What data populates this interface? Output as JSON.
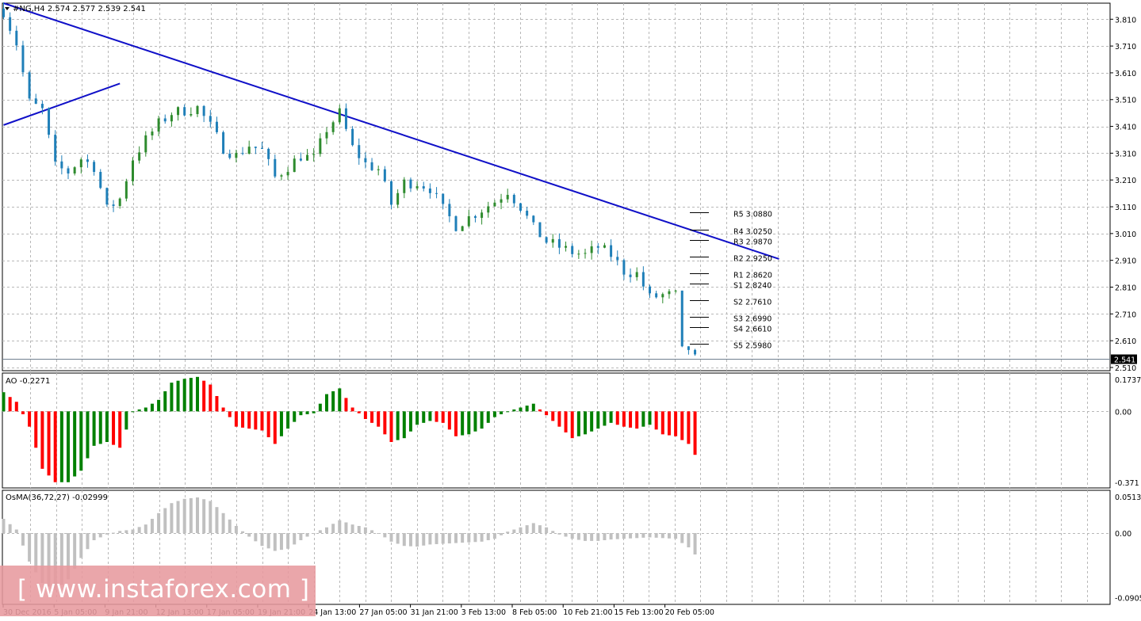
{
  "chart_data": [
    {
      "type": "candlestick",
      "symbol_header": "#NG,H4  2.574 2.577 2.539 2.541",
      "y_ticks": [
        "3.810",
        "3.710",
        "3.610",
        "3.510",
        "3.410",
        "3.310",
        "3.210",
        "3.110",
        "3.010",
        "2.910",
        "2.810",
        "2.710",
        "2.610",
        "2.510"
      ],
      "ylim": [
        2.498,
        3.87
      ],
      "current_price": "2.541",
      "x_tick_labels": [
        "30 Dec 2016",
        "5 Jan 05:00",
        "9 Jan 21:00",
        "12 Jan 13:00",
        "17 Jan 05:00",
        "19 Jan 21:00",
        "24 Jan 13:00",
        "27 Jan 05:00",
        "31 Jan 21:00",
        "3 Feb 13:00",
        "8 Feb 05:00",
        "10 Feb 21:00",
        "15 Feb 13:00",
        "20 Feb 05:00"
      ],
      "close_path": [
        [
          0,
          3.84
        ],
        [
          2,
          3.72
        ],
        [
          4,
          3.5
        ],
        [
          6,
          3.47
        ],
        [
          8,
          3.26
        ],
        [
          10,
          3.24
        ],
        [
          12,
          3.29
        ],
        [
          14,
          3.26
        ],
        [
          16,
          3.1
        ],
        [
          18,
          3.14
        ],
        [
          20,
          3.29
        ],
        [
          22,
          3.36
        ],
        [
          24,
          3.42
        ],
        [
          26,
          3.46
        ],
        [
          28,
          3.47
        ],
        [
          30,
          3.48
        ],
        [
          32,
          3.41
        ],
        [
          34,
          3.33
        ],
        [
          36,
          3.3
        ],
        [
          38,
          3.34
        ],
        [
          40,
          3.32
        ],
        [
          42,
          3.22
        ],
        [
          44,
          3.26
        ],
        [
          46,
          3.3
        ],
        [
          48,
          3.29
        ],
        [
          50,
          3.4
        ],
        [
          52,
          3.46
        ],
        [
          54,
          3.33
        ],
        [
          56,
          3.27
        ],
        [
          58,
          3.25
        ],
        [
          60,
          3.12
        ],
        [
          62,
          3.2
        ],
        [
          64,
          3.2
        ],
        [
          66,
          3.18
        ],
        [
          68,
          3.1
        ],
        [
          70,
          3.04
        ],
        [
          72,
          3.07
        ],
        [
          74,
          3.1
        ],
        [
          76,
          3.13
        ],
        [
          78,
          3.17
        ],
        [
          80,
          3.11
        ],
        [
          82,
          3.03
        ],
        [
          84,
          2.98
        ],
        [
          86,
          2.96
        ],
        [
          88,
          2.94
        ],
        [
          90,
          2.93
        ],
        [
          92,
          2.96
        ],
        [
          94,
          2.93
        ],
        [
          96,
          2.87
        ],
        [
          98,
          2.86
        ],
        [
          100,
          2.77
        ],
        [
          102,
          2.78
        ],
        [
          104,
          2.78
        ],
        [
          105,
          2.57
        ],
        [
          106,
          2.58
        ],
        [
          107,
          2.541
        ]
      ],
      "bull_color": "#2e8b2e",
      "bear_color": "#1f7fb8",
      "trendlines": [
        {
          "from": [
            0,
            3.415
          ],
          "to": [
            18,
            3.57
          ],
          "color": "#1010c8"
        },
        {
          "from": [
            0,
            3.87
          ],
          "to": [
            120,
            2.915
          ],
          "color": "#1010c8"
        }
      ],
      "pivot_levels": [
        {
          "label": "R5",
          "value": "3.0880",
          "level": 3.088
        },
        {
          "label": "R4",
          "value": "3.0250",
          "level": 3.025
        },
        {
          "label": "R3",
          "value": "2.9870",
          "level": 2.987
        },
        {
          "label": "R2",
          "value": "2.9250",
          "level": 2.925
        },
        {
          "label": "R1",
          "value": "2.8620",
          "level": 2.862
        },
        {
          "label": "S1",
          "value": "2.8240",
          "level": 2.824
        },
        {
          "label": "S2",
          "value": "2.7610",
          "level": 2.761
        },
        {
          "label": "S3",
          "value": "2.6990",
          "level": 2.699
        },
        {
          "label": "S4",
          "value": "2.6610",
          "level": 2.661
        },
        {
          "label": "S5",
          "value": "2.5980",
          "level": 2.598
        }
      ]
    },
    {
      "type": "bar",
      "name": "AO",
      "header": "AO -0.2271",
      "y_ticks": [
        "0.1737",
        "0.00",
        "-0.371"
      ],
      "ylim": [
        -0.4,
        0.2
      ],
      "rising_color": "#008000",
      "falling_color": "#ff0000",
      "curve": [
        [
          0,
          0.1
        ],
        [
          2,
          0.05
        ],
        [
          4,
          -0.08
        ],
        [
          6,
          -0.3
        ],
        [
          8,
          -0.37
        ],
        [
          10,
          -0.37
        ],
        [
          12,
          -0.31
        ],
        [
          14,
          -0.18
        ],
        [
          16,
          -0.16
        ],
        [
          18,
          -0.19
        ],
        [
          20,
          0.0
        ],
        [
          22,
          0.02
        ],
        [
          24,
          0.06
        ],
        [
          26,
          0.15
        ],
        [
          28,
          0.17
        ],
        [
          30,
          0.18
        ],
        [
          32,
          0.14
        ],
        [
          34,
          0.02
        ],
        [
          36,
          -0.08
        ],
        [
          38,
          -0.09
        ],
        [
          40,
          -0.1
        ],
        [
          42,
          -0.17
        ],
        [
          44,
          -0.09
        ],
        [
          46,
          -0.02
        ],
        [
          48,
          -0.01
        ],
        [
          50,
          0.09
        ],
        [
          52,
          0.12
        ],
        [
          54,
          0.02
        ],
        [
          56,
          -0.04
        ],
        [
          58,
          -0.08
        ],
        [
          60,
          -0.16
        ],
        [
          62,
          -0.14
        ],
        [
          64,
          -0.07
        ],
        [
          66,
          -0.05
        ],
        [
          68,
          -0.06
        ],
        [
          70,
          -0.13
        ],
        [
          72,
          -0.12
        ],
        [
          74,
          -0.09
        ],
        [
          76,
          -0.03
        ],
        [
          78,
          0.0
        ],
        [
          80,
          0.02
        ],
        [
          82,
          0.04
        ],
        [
          84,
          -0.02
        ],
        [
          86,
          -0.08
        ],
        [
          88,
          -0.14
        ],
        [
          90,
          -0.12
        ],
        [
          92,
          -0.09
        ],
        [
          94,
          -0.06
        ],
        [
          96,
          -0.08
        ],
        [
          98,
          -0.09
        ],
        [
          100,
          -0.07
        ],
        [
          102,
          -0.12
        ],
        [
          104,
          -0.13
        ],
        [
          106,
          -0.17
        ],
        [
          107,
          -0.2271
        ]
      ]
    },
    {
      "type": "bar",
      "name": "OsMA(36,72,27)",
      "header": "OsMA(36,72,27) -0.02999",
      "y_ticks": [
        "0.05133",
        "0.00",
        "-0.0905"
      ],
      "ylim": [
        -0.1,
        0.06
      ],
      "bar_color": "#c0c0c0",
      "curve": [
        [
          0,
          0.02
        ],
        [
          2,
          0.005
        ],
        [
          4,
          -0.04
        ],
        [
          6,
          -0.07
        ],
        [
          8,
          -0.08
        ],
        [
          10,
          -0.065
        ],
        [
          12,
          -0.035
        ],
        [
          14,
          -0.01
        ],
        [
          16,
          -0.002
        ],
        [
          18,
          0.003
        ],
        [
          20,
          0.005
        ],
        [
          22,
          0.012
        ],
        [
          24,
          0.028
        ],
        [
          26,
          0.042
        ],
        [
          28,
          0.048
        ],
        [
          30,
          0.05
        ],
        [
          32,
          0.045
        ],
        [
          34,
          0.028
        ],
        [
          36,
          0.01
        ],
        [
          38,
          -0.005
        ],
        [
          40,
          -0.018
        ],
        [
          42,
          -0.025
        ],
        [
          44,
          -0.022
        ],
        [
          46,
          -0.01
        ],
        [
          48,
          0.0
        ],
        [
          50,
          0.008
        ],
        [
          52,
          0.018
        ],
        [
          54,
          0.012
        ],
        [
          56,
          0.008
        ],
        [
          58,
          0.0
        ],
        [
          60,
          -0.012
        ],
        [
          62,
          -0.018
        ],
        [
          64,
          -0.019
        ],
        [
          66,
          -0.016
        ],
        [
          68,
          -0.015
        ],
        [
          70,
          -0.014
        ],
        [
          72,
          -0.013
        ],
        [
          74,
          -0.012
        ],
        [
          76,
          -0.008
        ],
        [
          78,
          0.002
        ],
        [
          80,
          0.008
        ],
        [
          82,
          0.014
        ],
        [
          84,
          0.008
        ],
        [
          86,
          -0.002
        ],
        [
          88,
          -0.008
        ],
        [
          90,
          -0.011
        ],
        [
          92,
          -0.011
        ],
        [
          94,
          -0.009
        ],
        [
          96,
          -0.008
        ],
        [
          98,
          -0.007
        ],
        [
          100,
          -0.006
        ],
        [
          102,
          -0.007
        ],
        [
          104,
          -0.008
        ],
        [
          106,
          -0.02
        ],
        [
          107,
          -0.02999
        ]
      ]
    }
  ],
  "watermark": "[  www.instaforex.com  ]"
}
